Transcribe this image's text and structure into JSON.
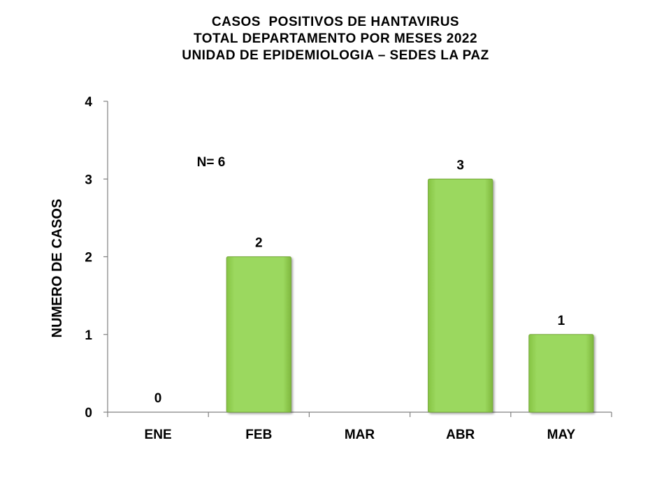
{
  "title": {
    "line1": "CASOS  POSITIVOS DE HANTAVIRUS",
    "line2": "TOTAL DEPARTAMENTO POR MESES 2022",
    "line3": "UNIDAD DE EPIDEMIOLOGIA – SEDES LA PAZ"
  },
  "chart_data": {
    "type": "bar",
    "categories": [
      "ENE",
      "FEB",
      "MAR",
      "ABR",
      "MAY"
    ],
    "values": [
      0,
      2,
      null,
      3,
      1
    ],
    "data_labels": [
      "0",
      "2",
      "",
      "3",
      "1"
    ],
    "ylabel": "NUMERO DE CASOS",
    "xlabel": "",
    "ylim": [
      0,
      4
    ],
    "yticks": [
      0,
      1,
      2,
      3,
      4
    ],
    "annotation": "N= 6",
    "bar_color": "#92D050",
    "grid": false
  }
}
